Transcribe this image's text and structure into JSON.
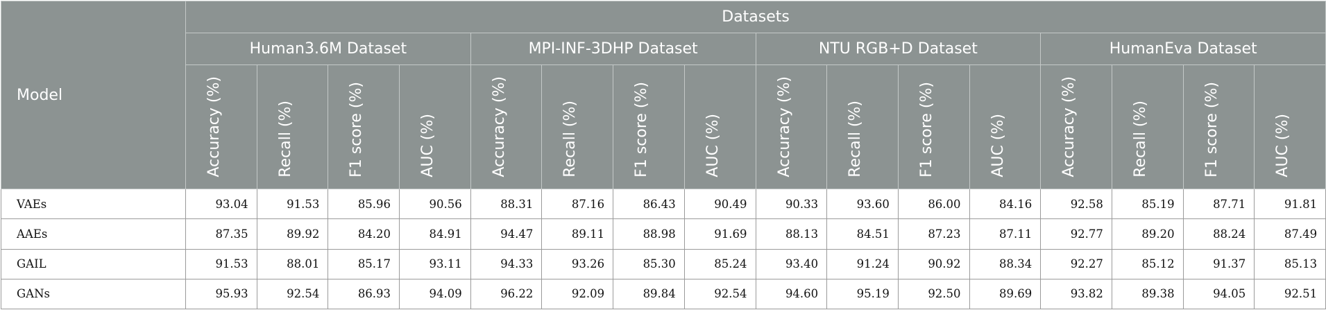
{
  "table": {
    "model_header": "Model",
    "group_header": "Datasets",
    "datasets": [
      "Human3.6M Dataset",
      "MPI-INF-3DHP Dataset",
      "NTU RGB+D Dataset",
      "HumanEva Dataset"
    ],
    "metrics": [
      "Accuracy (%)",
      "Recall (%)",
      "F1 score (%)",
      "AUC (%)"
    ],
    "rows": [
      {
        "model": "VAEs",
        "values": [
          "93.04",
          "91.53",
          "85.96",
          "90.56",
          "88.31",
          "87.16",
          "86.43",
          "90.49",
          "90.33",
          "93.60",
          "86.00",
          "84.16",
          "92.58",
          "85.19",
          "87.71",
          "91.81"
        ]
      },
      {
        "model": "AAEs",
        "values": [
          "87.35",
          "89.92",
          "84.20",
          "84.91",
          "94.47",
          "89.11",
          "88.98",
          "91.69",
          "88.13",
          "84.51",
          "87.23",
          "87.11",
          "92.77",
          "89.20",
          "88.24",
          "87.49"
        ]
      },
      {
        "model": "GAIL",
        "values": [
          "91.53",
          "88.01",
          "85.17",
          "93.11",
          "94.33",
          "93.26",
          "85.30",
          "85.24",
          "93.40",
          "91.24",
          "90.92",
          "88.34",
          "92.27",
          "85.12",
          "91.37",
          "85.13"
        ]
      },
      {
        "model": "GANs",
        "values": [
          "95.93",
          "92.54",
          "86.93",
          "94.09",
          "96.22",
          "92.09",
          "89.84",
          "92.54",
          "94.60",
          "95.19",
          "92.50",
          "89.69",
          "93.82",
          "89.38",
          "94.05",
          "92.51"
        ]
      }
    ]
  }
}
